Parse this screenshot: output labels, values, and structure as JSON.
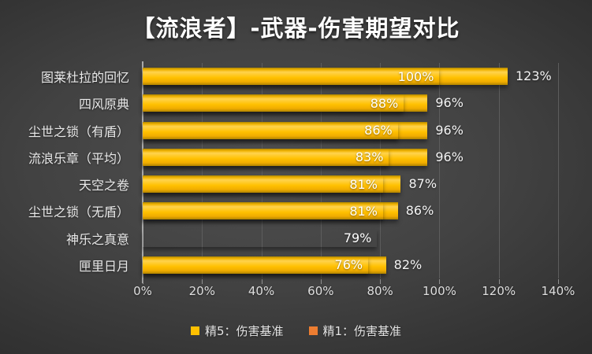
{
  "title": "【流浪者】-武器-伤害期望对比",
  "colors": {
    "background_center": "#4d4d4d",
    "background_edge": "#272727",
    "bar_refine1_orange": "#ED7D31",
    "bar_refine5_yellow": "#FFC000",
    "gridline": "#5d5d5d",
    "axis_line": "#a9a9a9",
    "text": "#e9e9e9",
    "title_text": "#ffffff"
  },
  "chart_data": {
    "type": "bar",
    "orientation": "horizontal",
    "title": "【流浪者】-武器-伤害期望对比",
    "categories": [
      "图莱杜拉的回忆",
      "四风原典",
      "尘世之锁（有盾）",
      "流浪乐章（平均）",
      "天空之卷",
      "尘世之锁（无盾）",
      "神乐之真意",
      "匣里日月"
    ],
    "series": [
      {
        "name": "精5：伤害基准",
        "color": "#FFC000",
        "values": [
          123,
          96,
          96,
          96,
          87,
          86,
          null,
          82
        ]
      },
      {
        "name": "精1：伤害基准",
        "color": "#ED7D31",
        "values": [
          100,
          88,
          86,
          83,
          81,
          81,
          79,
          76
        ]
      }
    ],
    "rows": [
      {
        "category": "图莱杜拉的回忆",
        "r1": 100,
        "r5": 123,
        "r1_label": "100%",
        "r5_label": "123%"
      },
      {
        "category": "四风原典",
        "r1": 88,
        "r5": 96,
        "r1_label": "88%",
        "r5_label": "96%"
      },
      {
        "category": "尘世之锁（有盾）",
        "r1": 86,
        "r5": 96,
        "r1_label": "86%",
        "r5_label": "96%"
      },
      {
        "category": "流浪乐章（平均）",
        "r1": 83,
        "r5": 96,
        "r1_label": "83%",
        "r5_label": "96%"
      },
      {
        "category": "天空之卷",
        "r1": 81,
        "r5": 87,
        "r1_label": "81%",
        "r5_label": "87%"
      },
      {
        "category": "尘世之锁（无盾）",
        "r1": 81,
        "r5": 86,
        "r1_label": "81%",
        "r5_label": "86%"
      },
      {
        "category": "神乐之真意",
        "r1": 79,
        "r5": null,
        "r1_label": "79%",
        "r5_label": ""
      },
      {
        "category": "匣里日月",
        "r1": 76,
        "r5": 82,
        "r1_label": "76%",
        "r5_label": "82%"
      }
    ],
    "xlim": [
      0,
      140
    ],
    "x_tick_values": [
      0,
      20,
      40,
      60,
      80,
      100,
      120,
      140
    ],
    "x_tick_labels": [
      "0%",
      "20%",
      "40%",
      "60%",
      "80%",
      "100%",
      "120%",
      "140%"
    ],
    "grid": true,
    "value_labels": "shown",
    "legend_position": "bottom",
    "legend": [
      {
        "label": "精5：伤害基准",
        "color": "#FFC000"
      },
      {
        "label": "精1：伤害基准",
        "color": "#ED7D31"
      }
    ]
  }
}
